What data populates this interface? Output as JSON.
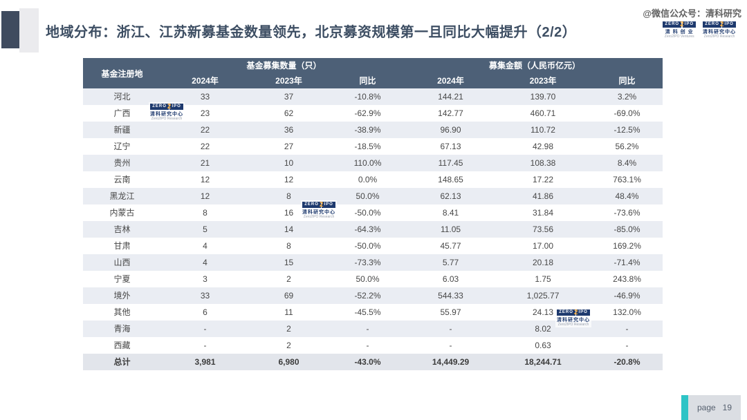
{
  "slide": {
    "title": "地域分布：浙江、江苏新募基金数量领先，北京募资规模第一且同比大幅提升（2/2）",
    "wechat_watermark": "@微信公众号：清科研究",
    "page_label": "page",
    "page_number": "19"
  },
  "logos": {
    "ventures": {
      "zero": "ZERO",
      "two": "2",
      "ipo": "IPO",
      "cn": "清 科 创 业",
      "en": "Zero2IPO Ventures"
    },
    "research": {
      "zero": "ZERO",
      "two": "2",
      "ipo": "IPO",
      "cn": "清科研究中心",
      "en": "Zero2IPO Research"
    }
  },
  "table": {
    "corner_header": "基金注册地",
    "groups": [
      "基金募集数量（只）",
      "募集金额（人民币亿元）"
    ],
    "sub_headers": [
      "2024年",
      "2023年",
      "同比",
      "2024年",
      "2023年",
      "同比"
    ],
    "rows": [
      {
        "region": "河北",
        "cells": [
          "33",
          "37",
          "-10.8%",
          "144.21",
          "139.70",
          "3.2%"
        ]
      },
      {
        "region": "广西",
        "cells": [
          "23",
          "62",
          "-62.9%",
          "142.77",
          "460.71",
          "-69.0%"
        ]
      },
      {
        "region": "新疆",
        "cells": [
          "22",
          "36",
          "-38.9%",
          "96.90",
          "110.72",
          "-12.5%"
        ]
      },
      {
        "region": "辽宁",
        "cells": [
          "22",
          "27",
          "-18.5%",
          "67.13",
          "42.98",
          "56.2%"
        ]
      },
      {
        "region": "贵州",
        "cells": [
          "21",
          "10",
          "110.0%",
          "117.45",
          "108.38",
          "8.4%"
        ]
      },
      {
        "region": "云南",
        "cells": [
          "12",
          "12",
          "0.0%",
          "148.65",
          "17.22",
          "763.1%"
        ]
      },
      {
        "region": "黑龙江",
        "cells": [
          "12",
          "8",
          "50.0%",
          "62.13",
          "41.86",
          "48.4%"
        ]
      },
      {
        "region": "内蒙古",
        "cells": [
          "8",
          "16",
          "-50.0%",
          "8.41",
          "31.84",
          "-73.6%"
        ]
      },
      {
        "region": "吉林",
        "cells": [
          "5",
          "14",
          "-64.3%",
          "11.05",
          "73.56",
          "-85.0%"
        ]
      },
      {
        "region": "甘肃",
        "cells": [
          "4",
          "8",
          "-50.0%",
          "45.77",
          "17.00",
          "169.2%"
        ]
      },
      {
        "region": "山西",
        "cells": [
          "4",
          "15",
          "-73.3%",
          "5.77",
          "20.18",
          "-71.4%"
        ]
      },
      {
        "region": "宁夏",
        "cells": [
          "3",
          "2",
          "50.0%",
          "6.03",
          "1.75",
          "243.8%"
        ]
      },
      {
        "region": "境外",
        "cells": [
          "33",
          "69",
          "-52.2%",
          "544.33",
          "1,025.77",
          "-46.9%"
        ]
      },
      {
        "region": "其他",
        "cells": [
          "6",
          "11",
          "-45.5%",
          "55.97",
          "24.13",
          "132.0%"
        ]
      },
      {
        "region": "青海",
        "cells": [
          "-",
          "2",
          "-",
          "-",
          "8.02",
          "-"
        ]
      },
      {
        "region": "西藏",
        "cells": [
          "-",
          "2",
          "-",
          "-",
          "0.63",
          "-"
        ]
      },
      {
        "region": "总计",
        "cells": [
          "3,981",
          "6,980",
          "-43.0%",
          "14,449.29",
          "18,244.71",
          "-20.8%"
        ],
        "total": true
      }
    ]
  },
  "colors": {
    "header_bg": "#4d6077",
    "stripe_bg": "#eaedf3",
    "total_row_bg": "#e2e5eb",
    "title_color": "#3d4e63",
    "accent_teal": "#2ec4c6",
    "logo_navy": "#1e3a6e",
    "logo_orange": "#f0a32f"
  }
}
